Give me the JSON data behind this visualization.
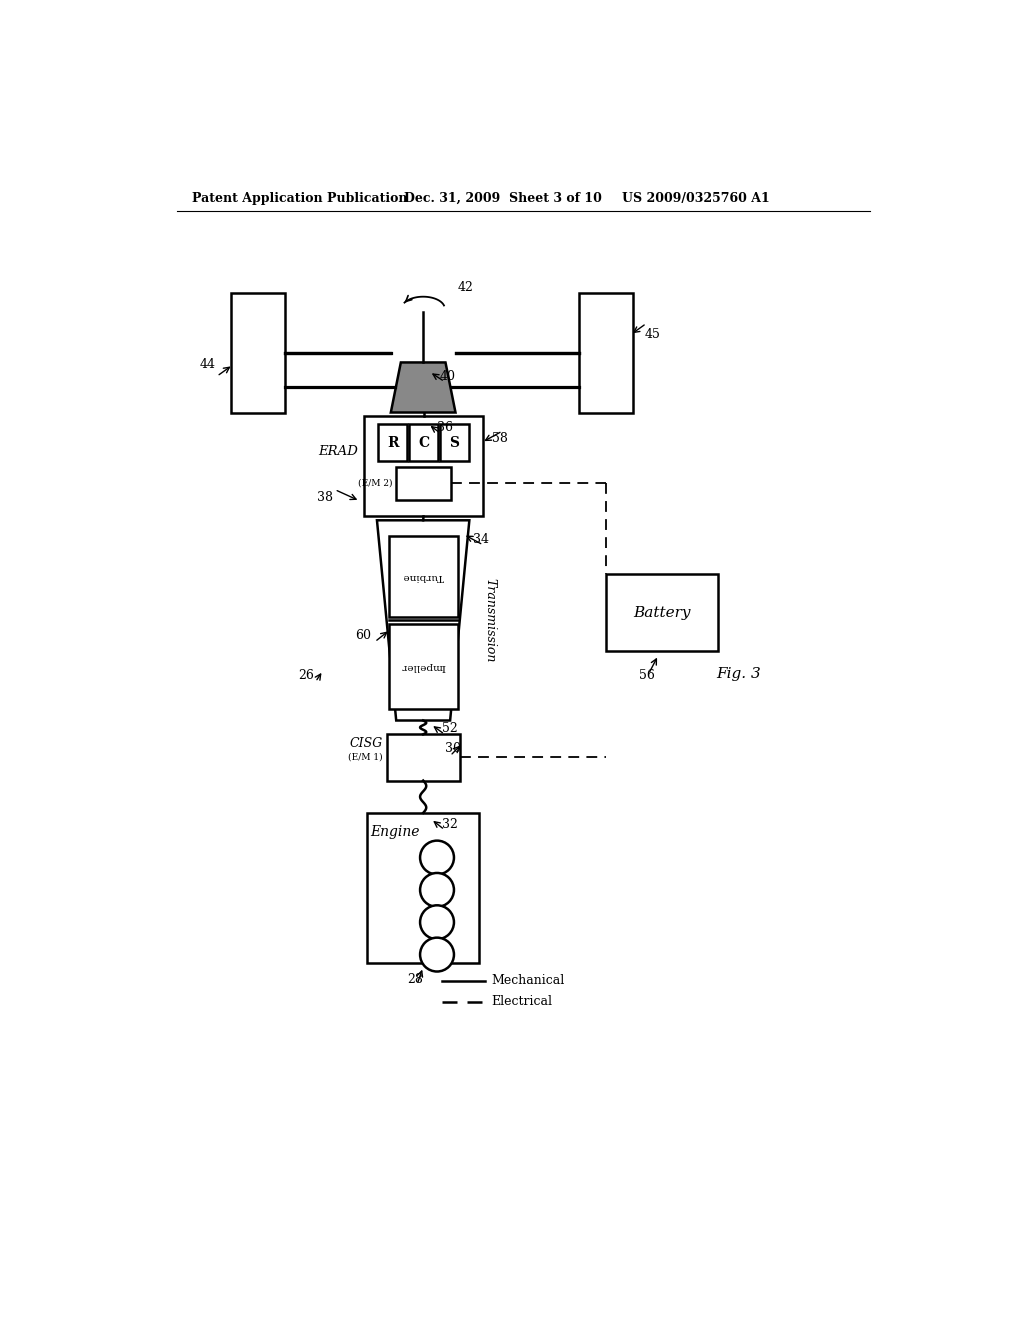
{
  "bg_color": "#ffffff",
  "line_color": "#000000",
  "header_left": "Patent Application Publication",
  "header_mid": "Dec. 31, 2009  Sheet 3 of 10",
  "header_right": "US 2009/0325760 A1",
  "fig_label": "Fig. 3"
}
